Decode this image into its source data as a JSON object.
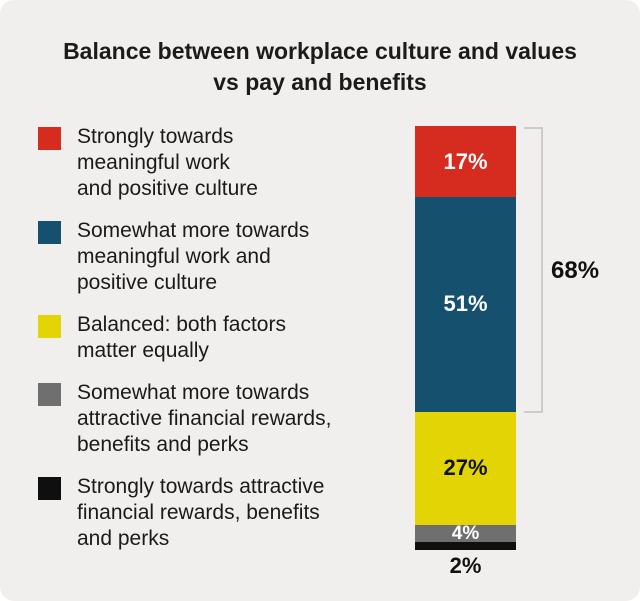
{
  "card": {
    "title": "Balance between workplace culture and values\nvs pay and benefits"
  },
  "legend": {
    "items": [
      {
        "label": "Strongly towards\nmeaningful work\nand positive culture",
        "color": "#d62b1f"
      },
      {
        "label": "Somewhat more towards\nmeaningful work and\npositive culture",
        "color": "#15506f"
      },
      {
        "label": "Balanced: both factors\nmatter equally",
        "color": "#e3d405"
      },
      {
        "label": "Somewhat more towards\nattractive financial rewards,\nbenefits and perks",
        "color": "#6f6f6f"
      },
      {
        "label": "Strongly towards attractive\nfinancial rewards, benefits\nand perks",
        "color": "#0f0f0f"
      }
    ]
  },
  "chart_data": {
    "type": "bar",
    "stacked": true,
    "orientation": "vertical",
    "title": "Balance between workplace culture and values vs pay and benefits",
    "unit": "%",
    "legend_position": "left",
    "segments": [
      {
        "label": "Strongly towards meaningful work and positive culture",
        "value": 17,
        "display": "17%",
        "color": "#d62b1f",
        "text_color": "#ffffff",
        "label_inside": true
      },
      {
        "label": "Somewhat more towards meaningful work and positive culture",
        "value": 51,
        "display": "51%",
        "color": "#15506f",
        "text_color": "#ffffff",
        "label_inside": true
      },
      {
        "label": "Balanced: both factors matter equally",
        "value": 27,
        "display": "27%",
        "color": "#e3d405",
        "text_color": "#111111",
        "label_inside": true
      },
      {
        "label": "Somewhat more towards attractive financial rewards, benefits and perks",
        "value": 4,
        "display": "4%",
        "color": "#6f6f6f",
        "text_color": "#ffffff",
        "label_inside": true
      },
      {
        "label": "Strongly towards attractive financial rewards, benefits and perks",
        "value": 2,
        "display": "2%",
        "color": "#0f0f0f",
        "text_color": "#111111",
        "label_inside": false
      }
    ],
    "bracket": {
      "display": "68%",
      "value": 68,
      "covers_segments": [
        0,
        1
      ]
    }
  }
}
